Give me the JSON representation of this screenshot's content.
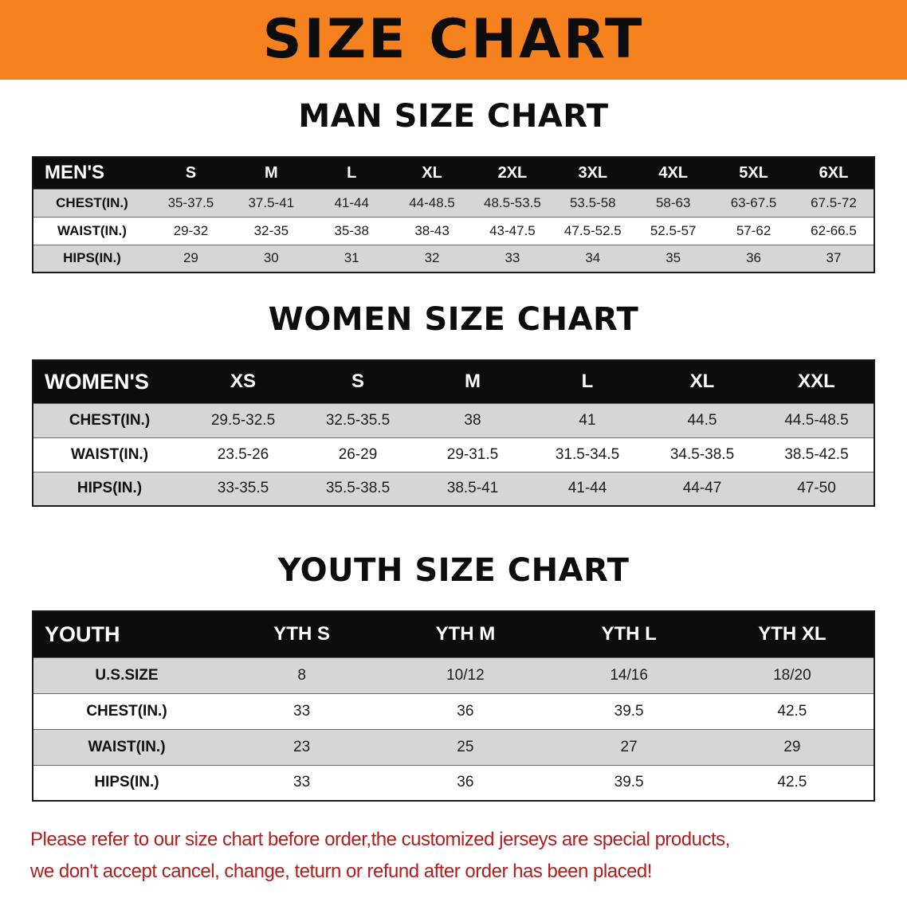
{
  "banner": {
    "title": "SIZE CHART",
    "bg_color": "#F6821F"
  },
  "men": {
    "heading": "MAN SIZE CHART",
    "table": {
      "header": [
        "MEN'S",
        "S",
        "M",
        "L",
        "XL",
        "2XL",
        "3XL",
        "4XL",
        "5XL",
        "6XL"
      ],
      "rows": [
        [
          "CHEST(IN.)",
          "35-37.5",
          "37.5-41",
          "41-44",
          "44-48.5",
          "48.5-53.5",
          "53.5-58",
          "58-63",
          "63-67.5",
          "67.5-72"
        ],
        [
          "WAIST(IN.)",
          "29-32",
          "32-35",
          "35-38",
          "38-43",
          "43-47.5",
          "47.5-52.5",
          "52.5-57",
          "57-62",
          "62-66.5"
        ],
        [
          "HIPS(IN.)",
          "29",
          "30",
          "31",
          "32",
          "33",
          "34",
          "35",
          "36",
          "37"
        ]
      ]
    }
  },
  "women": {
    "heading": "WOMEN SIZE CHART",
    "table": {
      "header": [
        "WOMEN'S",
        "XS",
        "S",
        "M",
        "L",
        "XL",
        "XXL"
      ],
      "rows": [
        [
          "CHEST(IN.)",
          "29.5-32.5",
          "32.5-35.5",
          "38",
          "41",
          "44.5",
          "44.5-48.5"
        ],
        [
          "WAIST(IN.)",
          "23.5-26",
          "26-29",
          "29-31.5",
          "31.5-34.5",
          "34.5-38.5",
          "38.5-42.5"
        ],
        [
          "HIPS(IN.)",
          "33-35.5",
          "35.5-38.5",
          "38.5-41",
          "41-44",
          "44-47",
          "47-50"
        ]
      ]
    }
  },
  "youth": {
    "heading": "YOUTH SIZE CHART",
    "table": {
      "header": [
        "YOUTH",
        "YTH S",
        "YTH M",
        "YTH L",
        "YTH XL"
      ],
      "rows": [
        [
          "U.S.SIZE",
          "8",
          "10/12",
          "14/16",
          "18/20"
        ],
        [
          "CHEST(IN.)",
          "33",
          "36",
          "39.5",
          "42.5"
        ],
        [
          "WAIST(IN.)",
          "23",
          "25",
          "27",
          "29"
        ],
        [
          "HIPS(IN.)",
          "33",
          "36",
          "39.5",
          "42.5"
        ]
      ]
    }
  },
  "disclaimer": {
    "line1": "Please refer to our size chart before order,the customized jerseys are special products,",
    "line2": "we don't accept cancel, change, teturn or refund after order has been placed!",
    "color": "#B01E1E"
  }
}
